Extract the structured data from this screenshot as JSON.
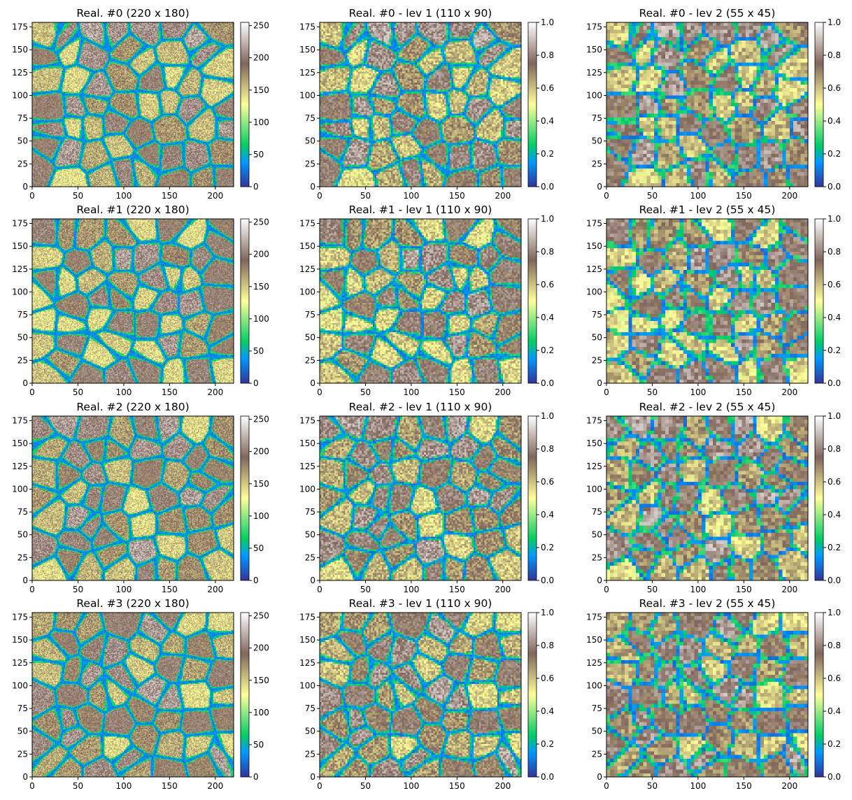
{
  "figure": {
    "layout": "4 rows x 3 columns of heatmap panels with colorbars"
  },
  "colormap": {
    "name": "terrain",
    "stops": [
      [
        0.0,
        "#333399"
      ],
      [
        0.15,
        "#0099ff"
      ],
      [
        0.25,
        "#00cc66"
      ],
      [
        0.5,
        "#ffff99"
      ],
      [
        0.75,
        "#80665c"
      ],
      [
        1.0,
        "#ffffff"
      ]
    ]
  },
  "axes": {
    "x_ticks": [
      "0",
      "50",
      "100",
      "150",
      "200"
    ],
    "y_ticks": [
      "0",
      "25",
      "50",
      "75",
      "100",
      "125",
      "150",
      "175"
    ],
    "xlim": [
      0,
      220
    ],
    "ylim": [
      0,
      180
    ]
  },
  "chart_data": [
    {
      "type": "heatmap",
      "title": "Real. #0 (220 x 180)",
      "grid": [
        220,
        180
      ],
      "seed": 11,
      "clim": [
        0,
        255
      ],
      "cbar_ticks": [
        "0",
        "50",
        "100",
        "150",
        "200",
        "250"
      ]
    },
    {
      "type": "heatmap",
      "title": "Real. #0 - lev 1 (110 x 90)",
      "grid": [
        110,
        90
      ],
      "seed": 11,
      "clim": [
        0,
        1
      ],
      "cbar_ticks": [
        "0.0",
        "0.2",
        "0.4",
        "0.6",
        "0.8",
        "1.0"
      ]
    },
    {
      "type": "heatmap",
      "title": "Real. #0 - lev 2 (55 x 45)",
      "grid": [
        55,
        45
      ],
      "seed": 11,
      "clim": [
        0,
        1
      ],
      "cbar_ticks": [
        "0.0",
        "0.2",
        "0.4",
        "0.6",
        "0.8",
        "1.0"
      ]
    },
    {
      "type": "heatmap",
      "title": "Real. #1 (220 x 180)",
      "grid": [
        220,
        180
      ],
      "seed": 23,
      "clim": [
        0,
        255
      ],
      "cbar_ticks": [
        "0",
        "50",
        "100",
        "150",
        "200",
        "250"
      ]
    },
    {
      "type": "heatmap",
      "title": "Real. #1 - lev 1 (110 x 90)",
      "grid": [
        110,
        90
      ],
      "seed": 23,
      "clim": [
        0,
        1
      ],
      "cbar_ticks": [
        "0.0",
        "0.2",
        "0.4",
        "0.6",
        "0.8",
        "1.0"
      ]
    },
    {
      "type": "heatmap",
      "title": "Real. #1 - lev 2 (55 x 45)",
      "grid": [
        55,
        45
      ],
      "seed": 23,
      "clim": [
        0,
        1
      ],
      "cbar_ticks": [
        "0.0",
        "0.2",
        "0.4",
        "0.6",
        "0.8",
        "1.0"
      ]
    },
    {
      "type": "heatmap",
      "title": "Real. #2 (220 x 180)",
      "grid": [
        220,
        180
      ],
      "seed": 37,
      "clim": [
        0,
        255
      ],
      "cbar_ticks": [
        "0",
        "50",
        "100",
        "150",
        "200",
        "250"
      ]
    },
    {
      "type": "heatmap",
      "title": "Real. #2 - lev 1 (110 x 90)",
      "grid": [
        110,
        90
      ],
      "seed": 37,
      "clim": [
        0,
        1
      ],
      "cbar_ticks": [
        "0.0",
        "0.2",
        "0.4",
        "0.6",
        "0.8",
        "1.0"
      ]
    },
    {
      "type": "heatmap",
      "title": "Real. #2 - lev 2 (55 x 45)",
      "grid": [
        55,
        45
      ],
      "seed": 37,
      "clim": [
        0,
        1
      ],
      "cbar_ticks": [
        "0.0",
        "0.2",
        "0.4",
        "0.6",
        "0.8",
        "1.0"
      ]
    },
    {
      "type": "heatmap",
      "title": "Real. #3 (220 x 180)",
      "grid": [
        220,
        180
      ],
      "seed": 53,
      "clim": [
        0,
        255
      ],
      "cbar_ticks": [
        "0",
        "50",
        "100",
        "150",
        "200",
        "250"
      ]
    },
    {
      "type": "heatmap",
      "title": "Real. #3 - lev 1 (110 x 90)",
      "grid": [
        110,
        90
      ],
      "seed": 53,
      "clim": [
        0,
        1
      ],
      "cbar_ticks": [
        "0.0",
        "0.2",
        "0.4",
        "0.6",
        "0.8",
        "1.0"
      ]
    },
    {
      "type": "heatmap",
      "title": "Real. #3 - lev 2 (55 x 45)",
      "grid": [
        55,
        45
      ],
      "seed": 53,
      "clim": [
        0,
        1
      ],
      "cbar_ticks": [
        "0.0",
        "0.2",
        "0.4",
        "0.6",
        "0.8",
        "1.0"
      ]
    }
  ]
}
